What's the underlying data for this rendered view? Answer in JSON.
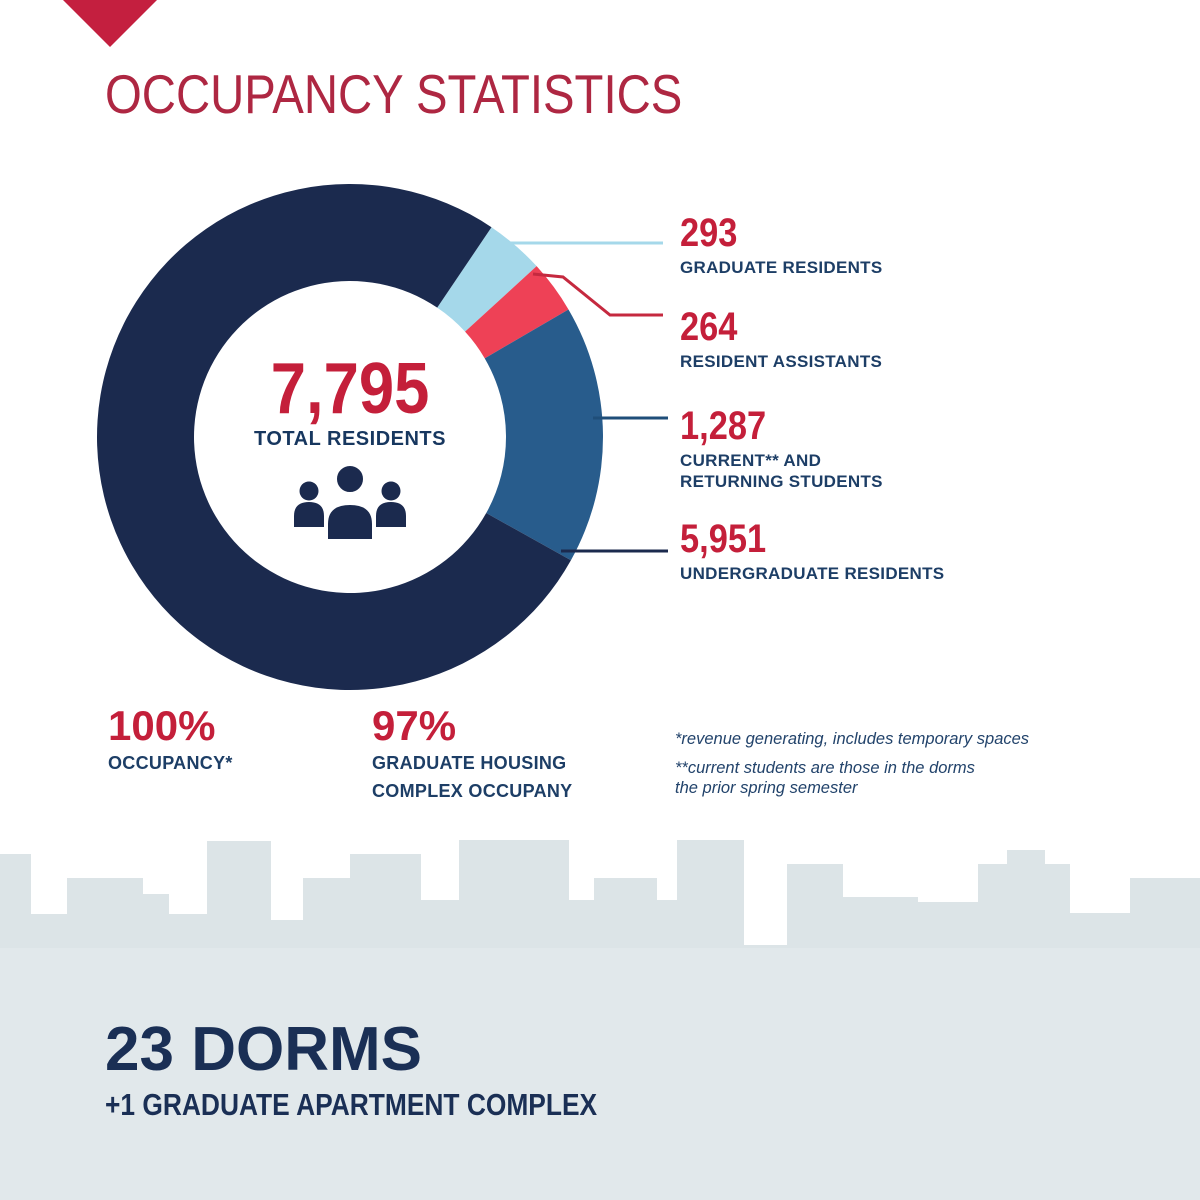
{
  "page": {
    "title": "OCCUPANCY STATISTICS"
  },
  "palette": {
    "triangle_red": "#c41f3f",
    "title_crimson": "#ae2742",
    "number_red": "#c41f3a",
    "line_red": "#c5293f",
    "navy": "#1b2a4e",
    "label_navy": "#1d3e66",
    "steel_blue": "#1f4e79",
    "light_blue": "#a5d8ea",
    "medium_blue": "#285c8c",
    "wedge_red": "#ee4156",
    "skyline_gray": "#dce4e7",
    "ground_gray": "#e1e8eb",
    "white": "#ffffff"
  },
  "icons": {
    "logo": "triangle-down-icon",
    "center": "people-group-icon"
  },
  "chart_data": {
    "type": "pie",
    "title": "Occupancy Statistics",
    "center_value": "7,795",
    "center_label": "TOTAL RESIDENTS",
    "total": 7795,
    "start_angle_deg": 34,
    "legend_position": "right",
    "slices": [
      {
        "label": "GRADUATE RESIDENTS",
        "value": 293,
        "value_display": "293",
        "color": "#a5d8ea"
      },
      {
        "label": "RESIDENT ASSISTANTS",
        "value": 264,
        "value_display": "264",
        "color": "#ee4156"
      },
      {
        "label": "CURRENT** AND\nRETURNING STUDENTS",
        "value": 1287,
        "value_display": "1,287",
        "color": "#285c8c"
      },
      {
        "label": "UNDERGRADUATE RESIDENTS",
        "value": 5951,
        "value_display": "5,951",
        "color": "#1b2a4e"
      }
    ]
  },
  "stats": [
    {
      "value": "100%",
      "label": "OCCUPANCY*"
    },
    {
      "value": "97%",
      "label": "GRADUATE HOUSING\nCOMPLEX OCCUPANY"
    }
  ],
  "footnotes": [
    "*revenue generating, includes temporary spaces",
    "**current students are those in the dorms\nthe prior spring semester"
  ],
  "footer": {
    "dorms": "23 DORMS",
    "sub": "+1 GRADUATE APARTMENT COMPLEX"
  }
}
